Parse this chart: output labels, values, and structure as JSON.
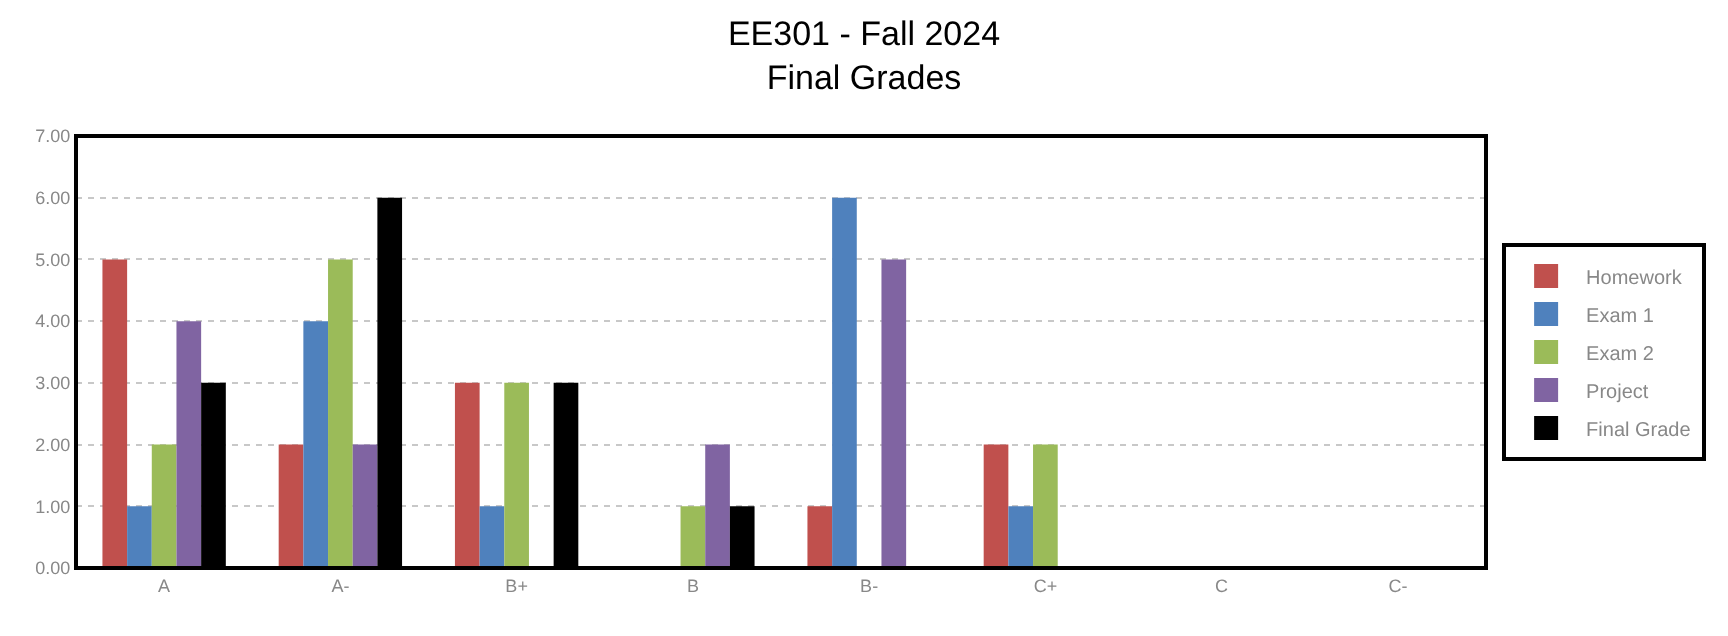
{
  "chart_data": {
    "type": "bar",
    "title": "EE301 - Fall 2024\nFinal Grades",
    "categories": [
      "A",
      "A-",
      "B+",
      "B",
      "B-",
      "C+",
      "C",
      "C-"
    ],
    "series": [
      {
        "name": "Homework",
        "color": "#c0504d",
        "values": [
          5,
          2,
          3,
          0,
          1,
          2,
          0,
          0
        ]
      },
      {
        "name": "Exam 1",
        "color": "#4f81bd",
        "values": [
          1,
          4,
          1,
          0,
          6,
          1,
          0,
          0
        ]
      },
      {
        "name": "Exam 2",
        "color": "#9bbb59",
        "values": [
          2,
          5,
          3,
          1,
          0,
          2,
          0,
          0
        ]
      },
      {
        "name": "Project",
        "color": "#8064a2",
        "values": [
          4,
          2,
          0,
          2,
          5,
          0,
          0,
          0
        ]
      },
      {
        "name": "Final Grade",
        "color": "#000000",
        "values": [
          3,
          6,
          3,
          1,
          0,
          0,
          0,
          0
        ]
      }
    ],
    "ylim": [
      0,
      7
    ],
    "yticks": [
      {
        "value": 0,
        "label": "0.00"
      },
      {
        "value": 1,
        "label": "1.00"
      },
      {
        "value": 2,
        "label": "2.00"
      },
      {
        "value": 3,
        "label": "3.00"
      },
      {
        "value": 4,
        "label": "4.00"
      },
      {
        "value": 5,
        "label": "5.00"
      },
      {
        "value": 6,
        "label": "6.00"
      },
      {
        "value": 7,
        "label": "7.00"
      }
    ],
    "grid": "y",
    "legend": "right"
  }
}
